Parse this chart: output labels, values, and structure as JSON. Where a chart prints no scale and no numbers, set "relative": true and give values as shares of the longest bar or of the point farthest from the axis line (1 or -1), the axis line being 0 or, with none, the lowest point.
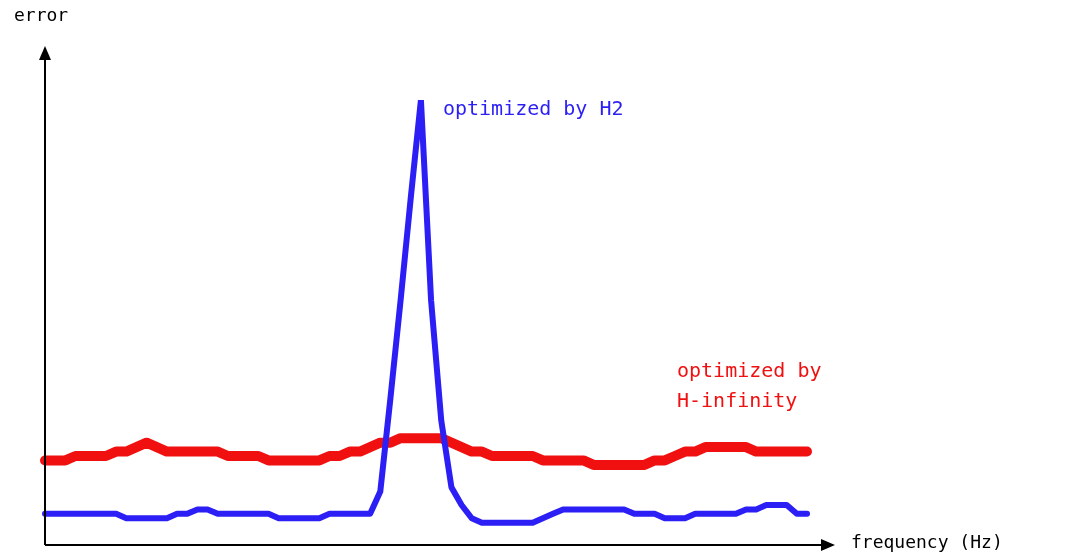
{
  "chart_data": {
    "type": "line",
    "relative": true,
    "xlabel": "frequency (Hz)",
    "ylabel": "error",
    "legend": false,
    "marker": "none",
    "line_style": "solid",
    "categories": [
      null,
      null,
      null,
      null,
      null,
      null,
      null,
      null,
      null,
      null,
      null,
      null,
      null,
      null,
      null,
      null,
      null,
      null,
      null,
      null,
      null,
      null,
      null,
      null,
      null,
      null,
      null,
      null,
      null,
      null,
      null,
      null,
      null,
      null,
      null,
      null,
      null,
      null,
      null,
      null,
      null,
      null,
      null,
      null,
      null,
      null,
      null,
      null,
      null,
      null,
      null,
      null,
      null,
      null,
      null,
      null,
      null,
      null,
      null,
      null,
      null,
      null,
      null,
      null,
      null,
      null,
      null,
      null,
      null,
      null,
      null,
      null,
      null,
      null,
      null,
      null
    ],
    "series": [
      {
        "name": "optimized by H2",
        "color": "#2b1ff5",
        "values": [
          0.07,
          0.07,
          0.07,
          0.07,
          0.07,
          0.07,
          0.07,
          0.07,
          0.06,
          0.06,
          0.06,
          0.06,
          0.06,
          0.07,
          0.07,
          0.08,
          0.08,
          0.07,
          0.07,
          0.07,
          0.07,
          0.07,
          0.07,
          0.06,
          0.06,
          0.06,
          0.06,
          0.06,
          0.07,
          0.07,
          0.07,
          0.07,
          0.07,
          0.12,
          0.33,
          0.55,
          0.78,
          1,
          0.55,
          0.28,
          0.13,
          0.09,
          0.06,
          0.05,
          0.05,
          0.05,
          0.05,
          0.05,
          0.05,
          0.06,
          0.07,
          0.08,
          0.08,
          0.08,
          0.08,
          0.08,
          0.08,
          0.08,
          0.07,
          0.07,
          0.07,
          0.06,
          0.06,
          0.06,
          0.07,
          0.07,
          0.07,
          0.07,
          0.07,
          0.08,
          0.08,
          0.09,
          0.09,
          0.09,
          0.07,
          0.07
        ]
      },
      {
        "name": "optimized by\nH-infinity",
        "color": "#f01010",
        "values": [
          0.19,
          0.19,
          0.19,
          0.2,
          0.2,
          0.2,
          0.2,
          0.21,
          0.21,
          0.22,
          0.23,
          0.22,
          0.21,
          0.21,
          0.21,
          0.21,
          0.21,
          0.21,
          0.2,
          0.2,
          0.2,
          0.2,
          0.19,
          0.19,
          0.19,
          0.19,
          0.19,
          0.19,
          0.2,
          0.2,
          0.21,
          0.21,
          0.22,
          0.23,
          0.23,
          0.24,
          0.24,
          0.24,
          0.24,
          0.24,
          0.23,
          0.22,
          0.21,
          0.21,
          0.2,
          0.2,
          0.2,
          0.2,
          0.2,
          0.19,
          0.19,
          0.19,
          0.19,
          0.19,
          0.18,
          0.18,
          0.18,
          0.18,
          0.18,
          0.18,
          0.19,
          0.19,
          0.2,
          0.21,
          0.21,
          0.22,
          0.22,
          0.22,
          0.22,
          0.22,
          0.21,
          0.21,
          0.21,
          0.21,
          0.21,
          0.21
        ]
      }
    ]
  }
}
